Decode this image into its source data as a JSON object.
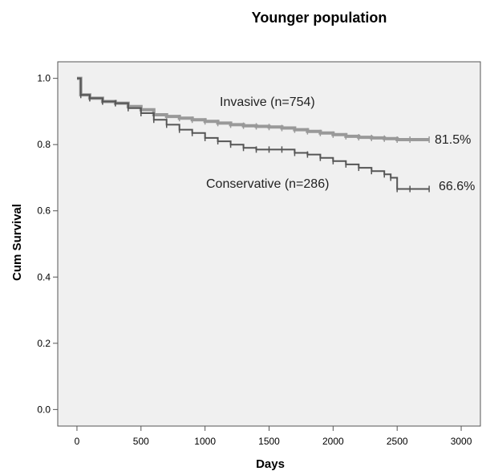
{
  "chart_data": {
    "type": "line",
    "subtype": "kaplan-meier step curve",
    "title": "Younger population",
    "xlabel": "Days",
    "ylabel": "Cum Survival",
    "xlim": [
      -150,
      3150
    ],
    "ylim": [
      -0.05,
      1.05
    ],
    "xticks": [
      0,
      500,
      1000,
      1500,
      2000,
      2500,
      3000
    ],
    "xtick_labels": [
      "0",
      "500",
      "1000",
      "1500",
      "2000",
      "2500",
      "3000"
    ],
    "yticks": [
      0.0,
      0.2,
      0.4,
      0.6,
      0.8,
      1.0
    ],
    "ytick_labels": [
      "0.0",
      "0.2",
      "0.4",
      "0.6",
      "0.8",
      "1.0"
    ],
    "grid": false,
    "plot_background": "#f0f0f0",
    "series": [
      {
        "name": "Invasive (n=754)",
        "color": "#999999",
        "end_label": "81.5%",
        "x": [
          0,
          30,
          100,
          200,
          300,
          400,
          500,
          600,
          700,
          800,
          900,
          1000,
          1100,
          1200,
          1300,
          1400,
          1500,
          1600,
          1700,
          1800,
          1900,
          2000,
          2100,
          2200,
          2300,
          2400,
          2500,
          2600,
          2750
        ],
        "y": [
          1.0,
          0.95,
          0.94,
          0.93,
          0.925,
          0.915,
          0.905,
          0.89,
          0.885,
          0.88,
          0.875,
          0.87,
          0.865,
          0.86,
          0.857,
          0.855,
          0.853,
          0.85,
          0.845,
          0.84,
          0.835,
          0.83,
          0.825,
          0.822,
          0.82,
          0.818,
          0.815,
          0.815,
          0.815
        ]
      },
      {
        "name": "Conservative (n=286)",
        "color": "#555555",
        "end_label": "66.6%",
        "x": [
          0,
          30,
          100,
          200,
          300,
          400,
          500,
          600,
          700,
          800,
          900,
          1000,
          1100,
          1200,
          1300,
          1400,
          1500,
          1600,
          1700,
          1800,
          1900,
          2000,
          2100,
          2200,
          2300,
          2400,
          2450,
          2500,
          2600,
          2750
        ],
        "y": [
          1.0,
          0.95,
          0.94,
          0.93,
          0.925,
          0.91,
          0.895,
          0.875,
          0.86,
          0.845,
          0.835,
          0.82,
          0.81,
          0.8,
          0.79,
          0.785,
          0.785,
          0.785,
          0.775,
          0.77,
          0.76,
          0.75,
          0.74,
          0.73,
          0.72,
          0.71,
          0.7,
          0.666,
          0.666,
          0.666
        ]
      }
    ]
  }
}
